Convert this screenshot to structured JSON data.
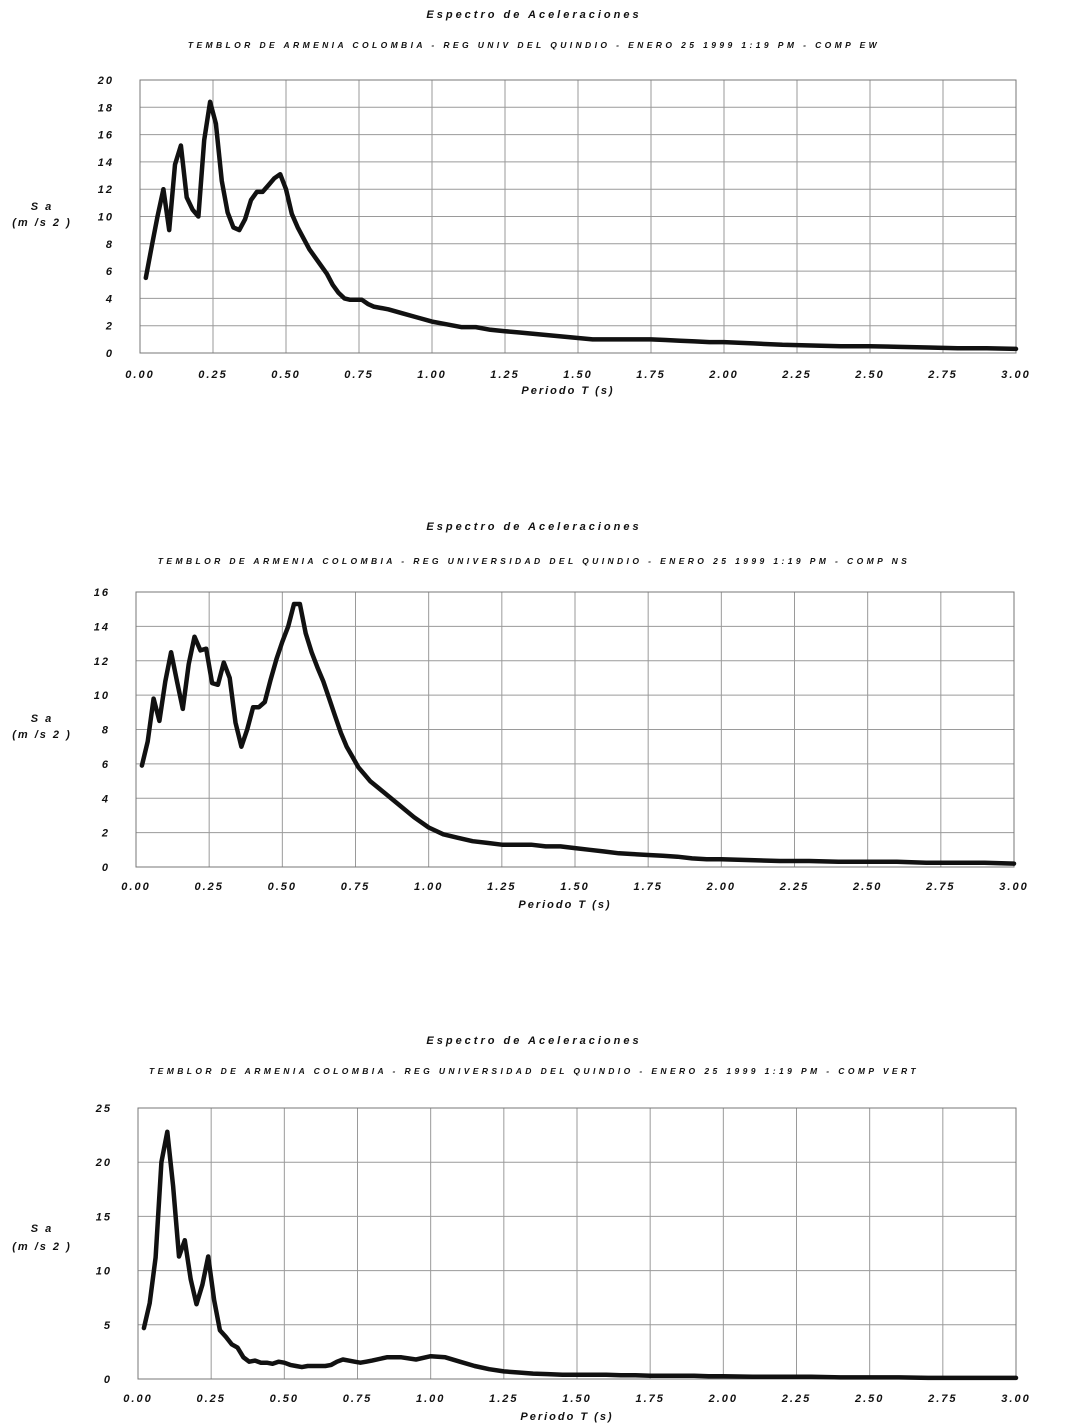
{
  "chart_data": [
    {
      "type": "line",
      "title": "Espectro de Aceleraciones",
      "subtitle": "TEMBLOR DE ARMENIA COLOMBIA - REG UNIV DEL QUINDIO - ENERO 25 1999 1:19 PM - COMP EW",
      "xlabel": "Periodo T (s)",
      "ylabel_line1": "S a",
      "ylabel_line2": "(m /s 2 )",
      "xlim": [
        0,
        3
      ],
      "ylim": [
        0,
        20
      ],
      "xticks": [
        "0.00",
        "0.25",
        "0.50",
        "0.75",
        "1.00",
        "1.25",
        "1.50",
        "1.75",
        "2.00",
        "2.25",
        "2.50",
        "2.75",
        "3.00"
      ],
      "yticks": [
        "0",
        "2",
        "4",
        "6",
        "8",
        "10",
        "12",
        "14",
        "16",
        "18",
        "20"
      ],
      "grid": true,
      "x": [
        0.02,
        0.04,
        0.06,
        0.08,
        0.1,
        0.12,
        0.14,
        0.16,
        0.18,
        0.2,
        0.22,
        0.24,
        0.26,
        0.28,
        0.3,
        0.32,
        0.34,
        0.36,
        0.38,
        0.4,
        0.42,
        0.44,
        0.46,
        0.48,
        0.5,
        0.52,
        0.54,
        0.56,
        0.58,
        0.6,
        0.62,
        0.64,
        0.66,
        0.68,
        0.7,
        0.72,
        0.74,
        0.76,
        0.78,
        0.8,
        0.85,
        0.9,
        0.95,
        1.0,
        1.05,
        1.1,
        1.15,
        1.2,
        1.25,
        1.3,
        1.35,
        1.4,
        1.45,
        1.5,
        1.55,
        1.6,
        1.65,
        1.7,
        1.75,
        1.8,
        1.85,
        1.9,
        1.95,
        2.0,
        2.1,
        2.2,
        2.3,
        2.4,
        2.5,
        2.6,
        2.7,
        2.8,
        2.9,
        3.0
      ],
      "y": [
        5.5,
        7.8,
        10.0,
        12.0,
        9.0,
        13.8,
        15.2,
        11.4,
        10.5,
        10.0,
        15.6,
        18.4,
        16.8,
        12.6,
        10.3,
        9.2,
        9.0,
        9.8,
        11.2,
        11.8,
        11.8,
        12.3,
        12.8,
        13.1,
        12.0,
        10.2,
        9.2,
        8.4,
        7.6,
        7.0,
        6.4,
        5.8,
        5.0,
        4.4,
        4.0,
        3.9,
        3.9,
        3.9,
        3.6,
        3.4,
        3.2,
        2.9,
        2.6,
        2.3,
        2.1,
        1.9,
        1.9,
        1.7,
        1.6,
        1.5,
        1.4,
        1.3,
        1.2,
        1.1,
        1.0,
        1.0,
        1.0,
        1.0,
        1.0,
        0.95,
        0.9,
        0.85,
        0.8,
        0.8,
        0.7,
        0.6,
        0.55,
        0.5,
        0.5,
        0.45,
        0.4,
        0.35,
        0.35,
        0.3
      ]
    },
    {
      "type": "line",
      "title": "Espectro de Aceleraciones",
      "subtitle": "TEMBLOR DE ARMENIA COLOMBIA - REG UNIVERSIDAD DEL QUINDIO - ENERO 25 1999 1:19 PM - COMP NS",
      "xlabel": "Periodo T (s)",
      "ylabel_line1": "S a",
      "ylabel_line2": "(m /s 2 )",
      "xlim": [
        0,
        3
      ],
      "ylim": [
        0,
        16
      ],
      "xticks": [
        "0.00",
        "0.25",
        "0.50",
        "0.75",
        "1.00",
        "1.25",
        "1.50",
        "1.75",
        "2.00",
        "2.25",
        "2.50",
        "2.75",
        "3.00"
      ],
      "yticks": [
        "0",
        "2",
        "4",
        "6",
        "8",
        "10",
        "12",
        "14",
        "16"
      ],
      "grid": true,
      "x": [
        0.02,
        0.04,
        0.06,
        0.08,
        0.1,
        0.12,
        0.14,
        0.16,
        0.18,
        0.2,
        0.22,
        0.24,
        0.26,
        0.28,
        0.3,
        0.32,
        0.34,
        0.36,
        0.38,
        0.4,
        0.42,
        0.44,
        0.46,
        0.48,
        0.5,
        0.52,
        0.54,
        0.56,
        0.58,
        0.6,
        0.62,
        0.64,
        0.66,
        0.68,
        0.7,
        0.72,
        0.74,
        0.76,
        0.78,
        0.8,
        0.85,
        0.9,
        0.95,
        1.0,
        1.05,
        1.1,
        1.15,
        1.2,
        1.25,
        1.3,
        1.35,
        1.4,
        1.45,
        1.5,
        1.55,
        1.6,
        1.65,
        1.7,
        1.75,
        1.8,
        1.85,
        1.9,
        1.95,
        2.0,
        2.1,
        2.2,
        2.3,
        2.4,
        2.5,
        2.6,
        2.7,
        2.8,
        2.9,
        3.0
      ],
      "y": [
        5.9,
        7.3,
        9.8,
        8.5,
        10.8,
        12.5,
        10.8,
        9.2,
        11.8,
        13.4,
        12.6,
        12.7,
        10.7,
        10.6,
        11.9,
        11.0,
        8.4,
        7.0,
        8.0,
        9.3,
        9.3,
        9.6,
        10.9,
        12.1,
        13.1,
        14.0,
        15.3,
        15.3,
        13.6,
        12.5,
        11.6,
        10.8,
        9.8,
        8.8,
        7.8,
        7.0,
        6.4,
        5.8,
        5.4,
        5.0,
        4.3,
        3.6,
        2.9,
        2.3,
        1.9,
        1.7,
        1.5,
        1.4,
        1.3,
        1.3,
        1.3,
        1.2,
        1.2,
        1.1,
        1.0,
        0.9,
        0.8,
        0.75,
        0.7,
        0.65,
        0.6,
        0.5,
        0.45,
        0.45,
        0.4,
        0.35,
        0.35,
        0.3,
        0.3,
        0.3,
        0.25,
        0.25,
        0.25,
        0.2
      ]
    },
    {
      "type": "line",
      "title": "Espectro de Aceleraciones",
      "subtitle": "TEMBLOR DE ARMENIA COLOMBIA - REG UNIVERSIDAD DEL QUINDIO - ENERO 25 1999 1:19 PM - COMP VERT",
      "xlabel": "Periodo T (s)",
      "ylabel_line1": "S a",
      "ylabel_line2": "(m /s 2 )",
      "xlim": [
        0,
        3
      ],
      "ylim": [
        0,
        25
      ],
      "xticks": [
        "0.00",
        "0.25",
        "0.50",
        "0.75",
        "1.00",
        "1.25",
        "1.50",
        "1.75",
        "2.00",
        "2.25",
        "2.50",
        "2.75",
        "3.00"
      ],
      "yticks": [
        "0",
        "5",
        "10",
        "15",
        "20",
        "25"
      ],
      "grid": true,
      "x": [
        0.02,
        0.04,
        0.06,
        0.08,
        0.1,
        0.12,
        0.14,
        0.16,
        0.18,
        0.2,
        0.22,
        0.24,
        0.26,
        0.28,
        0.3,
        0.32,
        0.34,
        0.36,
        0.38,
        0.4,
        0.42,
        0.44,
        0.46,
        0.48,
        0.5,
        0.52,
        0.54,
        0.56,
        0.58,
        0.6,
        0.62,
        0.64,
        0.66,
        0.68,
        0.7,
        0.72,
        0.74,
        0.76,
        0.78,
        0.8,
        0.85,
        0.9,
        0.95,
        1.0,
        1.05,
        1.1,
        1.15,
        1.2,
        1.25,
        1.3,
        1.35,
        1.4,
        1.45,
        1.5,
        1.55,
        1.6,
        1.65,
        1.7,
        1.75,
        1.8,
        1.85,
        1.9,
        1.95,
        2.0,
        2.1,
        2.2,
        2.3,
        2.4,
        2.5,
        2.6,
        2.7,
        2.8,
        2.9,
        3.0
      ],
      "y": [
        4.7,
        7.0,
        11.2,
        20.0,
        22.8,
        17.8,
        11.3,
        12.8,
        9.2,
        6.9,
        8.7,
        11.3,
        7.3,
        4.5,
        3.9,
        3.2,
        2.9,
        2.0,
        1.6,
        1.7,
        1.5,
        1.5,
        1.4,
        1.6,
        1.5,
        1.3,
        1.2,
        1.1,
        1.2,
        1.2,
        1.2,
        1.2,
        1.3,
        1.6,
        1.8,
        1.7,
        1.6,
        1.5,
        1.6,
        1.7,
        2.0,
        2.0,
        1.8,
        2.1,
        2.0,
        1.6,
        1.2,
        0.9,
        0.7,
        0.6,
        0.5,
        0.45,
        0.4,
        0.4,
        0.4,
        0.4,
        0.35,
        0.35,
        0.3,
        0.3,
        0.3,
        0.3,
        0.25,
        0.25,
        0.2,
        0.2,
        0.2,
        0.15,
        0.15,
        0.15,
        0.1,
        0.1,
        0.1,
        0.1
      ]
    }
  ]
}
